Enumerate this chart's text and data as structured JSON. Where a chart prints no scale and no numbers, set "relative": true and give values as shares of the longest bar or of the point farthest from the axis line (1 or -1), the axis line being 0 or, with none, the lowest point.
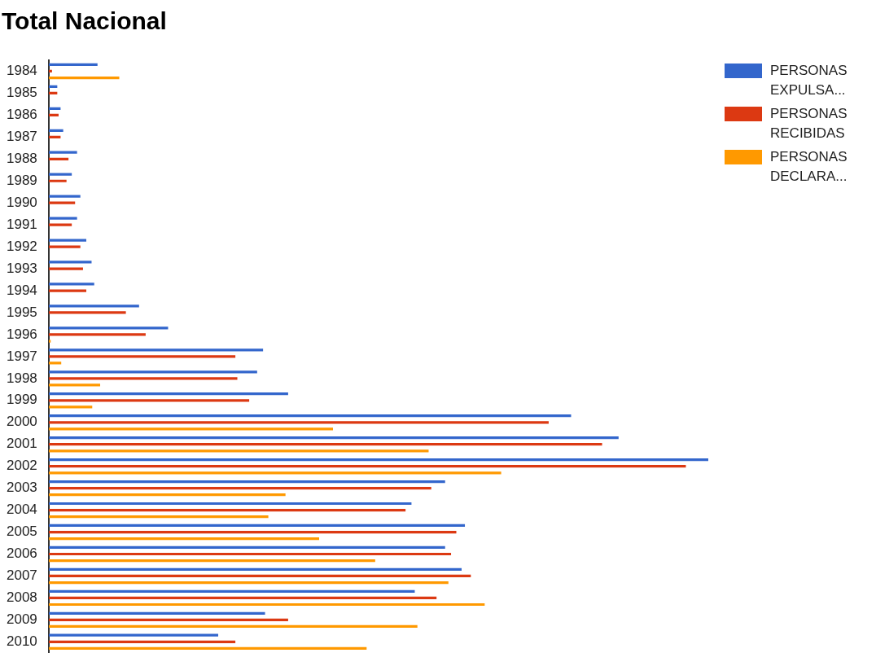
{
  "chart_data": {
    "type": "bar",
    "title": "Total Nacional",
    "orientation": "horizontal",
    "relative": true,
    "legend": "right",
    "categories": [
      "1984",
      "1985",
      "1986",
      "1987",
      "1988",
      "1989",
      "1990",
      "1991",
      "1992",
      "1993",
      "1994",
      "1995",
      "1996",
      "1997",
      "1998",
      "1999",
      "2000",
      "2001",
      "2002",
      "2003",
      "2004",
      "2005",
      "2006",
      "2007",
      "2008",
      "2009",
      "2010"
    ],
    "series": [
      {
        "name": "PERSONAS EXPULSA...",
        "color": "#3366cc",
        "values": [
          0.074,
          0.013,
          0.018,
          0.022,
          0.043,
          0.035,
          0.048,
          0.043,
          0.057,
          0.065,
          0.069,
          0.137,
          0.181,
          0.325,
          0.316,
          0.363,
          0.792,
          0.864,
          1,
          0.601,
          0.55,
          0.631,
          0.601,
          0.626,
          0.555,
          0.328,
          0.257
        ]
      },
      {
        "name": "PERSONAS RECIBIDAS",
        "color": "#dc3912",
        "values": [
          0.005,
          0.013,
          0.015,
          0.018,
          0.03,
          0.027,
          0.04,
          0.035,
          0.048,
          0.052,
          0.057,
          0.117,
          0.147,
          0.283,
          0.286,
          0.304,
          0.758,
          0.839,
          0.966,
          0.58,
          0.541,
          0.618,
          0.61,
          0.64,
          0.588,
          0.363,
          0.283
        ]
      },
      {
        "name": "PERSONAS DECLARA...",
        "color": "#ff9900",
        "values": [
          0.107,
          0,
          0,
          0,
          0,
          0,
          0,
          0,
          0,
          0,
          0,
          0,
          0.003,
          0.019,
          0.078,
          0.066,
          0.431,
          0.576,
          0.686,
          0.359,
          0.333,
          0.41,
          0.495,
          0.606,
          0.661,
          0.559,
          0.482
        ]
      }
    ]
  }
}
